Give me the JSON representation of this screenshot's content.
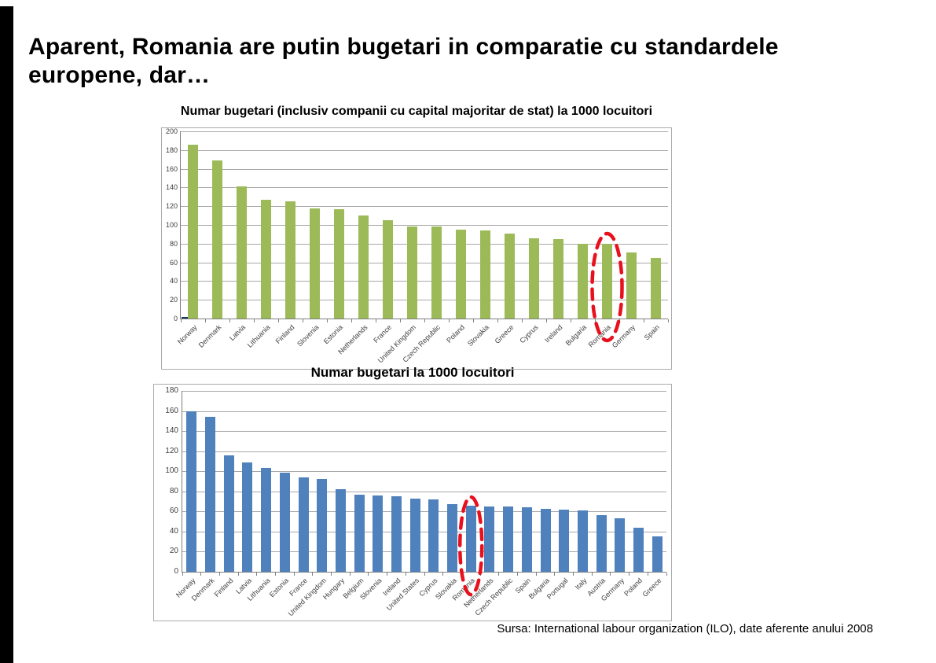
{
  "slide": {
    "title_line1": "Aparent, Romania are putin bugetari in comparatie cu standardele",
    "title_line2": "europene, dar…",
    "source": "Sursa: International labour organization (ILO), date aferente anului 2008",
    "accent_bar_color": "#000000",
    "background": "#FFFFFF"
  },
  "chart_data": [
    {
      "type": "bar",
      "title": "Numar bugetari (inclusiv companii cu capital majoritar de stat) la 1000 locuitori",
      "categories": [
        "Norway",
        "Denmark",
        "Latvia",
        "Lithuania",
        "Finland",
        "Slovenia",
        "Estonia",
        "Netherlands",
        "France",
        "United Kingdom",
        "Czech Republic",
        "Poland",
        "Slovakia",
        "Greece",
        "Cyprus",
        "Ireland",
        "Bulgaria",
        "Romania",
        "Germany",
        "Spain"
      ],
      "values": [
        186,
        169,
        141,
        127,
        125,
        118,
        117,
        110,
        105,
        98,
        98,
        95,
        94,
        91,
        86,
        85,
        80,
        80,
        71,
        65
      ],
      "bar_color": "#9dba59",
      "ylim": [
        0,
        200
      ],
      "ytick_step": 20,
      "grid": true,
      "legend": "none",
      "highlight": {
        "category": "Romania",
        "index": 17,
        "style": "red-dashed-ellipse",
        "color": "#e8101c"
      },
      "pre_bar": {
        "value": 2,
        "color": "#17375E"
      }
    },
    {
      "type": "bar",
      "title": "Numar bugetari la 1000 locuitori",
      "categories": [
        "Norway",
        "Denmark",
        "Finland",
        "Latvia",
        "Lithuania",
        "Estonia",
        "France",
        "United Kingdom",
        "Hungary",
        "Belgium",
        "Slovenia",
        "Ireland",
        "United States",
        "Cyprus",
        "Slovakia",
        "Romania",
        "Netherlands",
        "Czech Republic",
        "Spain",
        "Bulgaria",
        "Portugal",
        "Italy",
        "Austria",
        "Germany",
        "Poland",
        "Greece"
      ],
      "values": [
        160,
        154,
        116,
        109,
        103,
        99,
        94,
        92,
        82,
        77,
        76,
        75,
        73,
        72,
        67,
        66,
        65,
        65,
        64,
        63,
        62,
        61,
        56,
        53,
        44,
        35
      ],
      "bar_color": "#4F81BD",
      "ylim": [
        0,
        180
      ],
      "ytick_step": 20,
      "grid": true,
      "legend": "none",
      "highlight": {
        "category": "Romania",
        "index": 15,
        "style": "red-dashed-ellipse",
        "color": "#e8101c"
      }
    }
  ]
}
